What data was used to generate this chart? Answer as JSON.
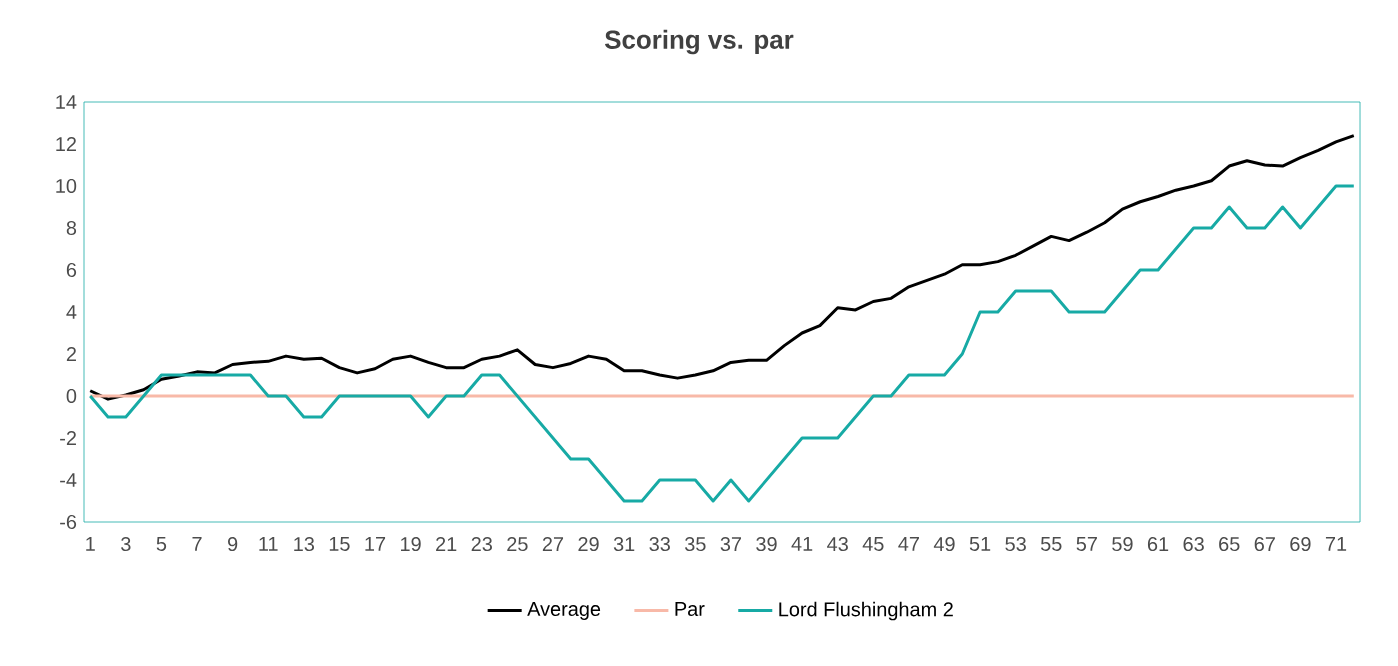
{
  "chart_data": {
    "type": "line",
    "title": "Scoring vs. par",
    "categories": [
      "1",
      null,
      "3",
      null,
      "5",
      null,
      "7",
      null,
      "9",
      null,
      "11",
      null,
      "13",
      null,
      "15",
      null,
      "17",
      null,
      "19",
      null,
      "21",
      null,
      "23",
      null,
      "25",
      null,
      "27",
      null,
      "29",
      null,
      "31",
      null,
      "33",
      null,
      "35",
      null,
      "37",
      null,
      "39",
      null,
      "41",
      null,
      "43",
      null,
      "45",
      null,
      "47",
      null,
      "49",
      null,
      "51",
      null,
      "53",
      null,
      "55",
      null,
      "57",
      null,
      "59",
      null,
      "61",
      null,
      "63",
      null,
      "65",
      null,
      "67",
      null,
      "69",
      null,
      "71",
      null
    ],
    "series": [
      {
        "name": "Average",
        "color": "#000000",
        "values": [
          0.25,
          -0.15,
          0.05,
          0.3,
          0.8,
          0.95,
          1.15,
          1.1,
          1.5,
          1.6,
          1.65,
          1.9,
          1.75,
          1.8,
          1.35,
          1.1,
          1.3,
          1.75,
          1.9,
          1.6,
          1.35,
          1.35,
          1.75,
          1.9,
          2.2,
          1.5,
          1.35,
          1.55,
          1.9,
          1.75,
          1.2,
          1.2,
          1.0,
          0.85,
          1.0,
          1.2,
          1.6,
          1.7,
          1.7,
          2.4,
          3.0,
          3.35,
          4.2,
          4.1,
          4.5,
          4.65,
          5.2,
          5.5,
          5.8,
          6.25,
          6.25,
          6.4,
          6.7,
          7.15,
          7.6,
          7.4,
          7.8,
          8.25,
          8.9,
          9.25,
          9.5,
          9.8,
          10.0,
          10.25,
          10.95,
          11.2,
          11.0,
          10.95,
          11.35,
          11.7,
          12.1,
          12.4
        ]
      },
      {
        "name": "Par",
        "color": "#f8b9a8",
        "values": [
          0,
          0,
          0,
          0,
          0,
          0,
          0,
          0,
          0,
          0,
          0,
          0,
          0,
          0,
          0,
          0,
          0,
          0,
          0,
          0,
          0,
          0,
          0,
          0,
          0,
          0,
          0,
          0,
          0,
          0,
          0,
          0,
          0,
          0,
          0,
          0,
          0,
          0,
          0,
          0,
          0,
          0,
          0,
          0,
          0,
          0,
          0,
          0,
          0,
          0,
          0,
          0,
          0,
          0,
          0,
          0,
          0,
          0,
          0,
          0,
          0,
          0,
          0,
          0,
          0,
          0,
          0,
          0,
          0,
          0,
          0,
          0
        ]
      },
      {
        "name": "Lord Flushingham 2",
        "color": "#17aaa5",
        "values": [
          0,
          -1,
          -1,
          0,
          1,
          1,
          1,
          1,
          1,
          1,
          0,
          0,
          -1,
          -1,
          0,
          0,
          0,
          0,
          0,
          -1,
          0,
          0,
          1,
          1,
          0,
          -1,
          -2,
          -3,
          -3,
          -4,
          -5,
          -5,
          -4,
          -4,
          -4,
          -5,
          -4,
          -5,
          -4,
          -3,
          -2,
          -2,
          -2,
          -1,
          0,
          0,
          1,
          1,
          1,
          2,
          4,
          4,
          5,
          5,
          5,
          4,
          4,
          4,
          5,
          6,
          6,
          7,
          8,
          8,
          9,
          8,
          8,
          9,
          8,
          9,
          10,
          10
        ]
      }
    ],
    "ylim": [
      -6,
      14
    ],
    "yticks": [
      -6,
      -4,
      -2,
      0,
      2,
      4,
      6,
      8,
      10,
      12,
      14
    ],
    "grid": false,
    "legend": "bottom",
    "marker": "none",
    "line_style": "solid"
  }
}
